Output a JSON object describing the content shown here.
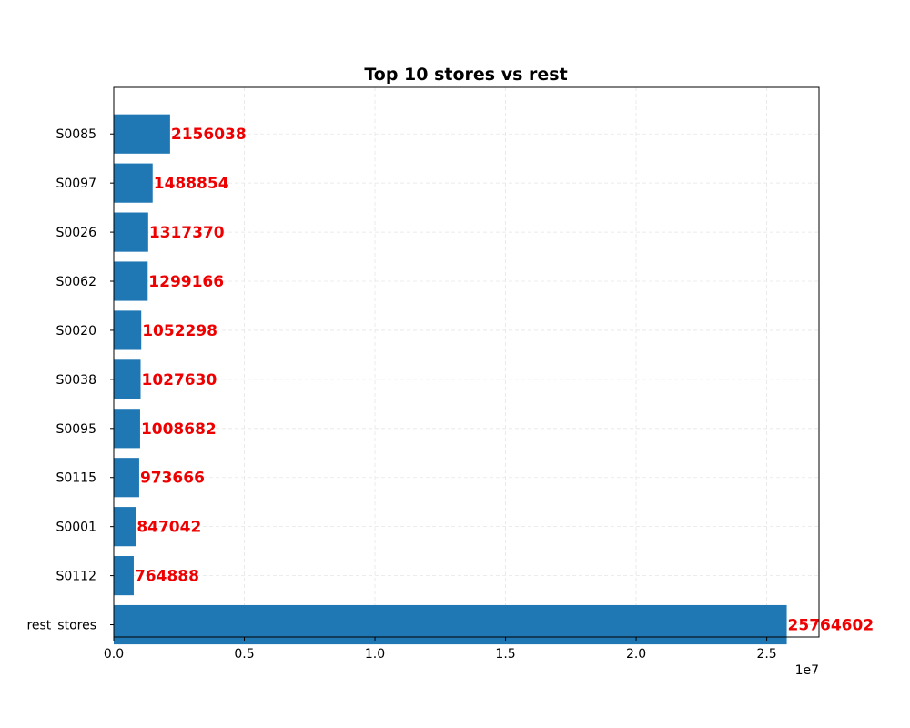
{
  "chart_data": {
    "type": "bar",
    "orientation": "horizontal",
    "title": "Top 10 stores vs rest",
    "xlabel": "",
    "ylabel": "",
    "categories": [
      "S0085",
      "S0097",
      "S0026",
      "S0062",
      "S0020",
      "S0038",
      "S0095",
      "S0115",
      "S0001",
      "S0112",
      "rest_stores"
    ],
    "values": [
      2156038,
      1488854,
      1317370,
      1299166,
      1052298,
      1027630,
      1008682,
      973666,
      847042,
      764888,
      25764602
    ],
    "data_labels": [
      "2156038",
      "1488854",
      "1317370",
      "1299166",
      "1052298",
      "1027630",
      "1008682",
      "973666",
      "847042",
      "764888",
      "25764602"
    ],
    "xlim": [
      0,
      27000000
    ],
    "x_ticks": [
      0,
      5000000,
      10000000,
      15000000,
      20000000,
      25000000
    ],
    "x_tick_labels": [
      "0.0",
      "0.5",
      "1.0",
      "1.5",
      "2.0",
      "2.5"
    ],
    "x_axis_offset_label": "1e7",
    "grid": true,
    "legend": "none",
    "colors": {
      "bar": "#1f77b4",
      "data_label": "#ee0000",
      "grid": "#e6e6e6",
      "axis": "#000000"
    }
  }
}
